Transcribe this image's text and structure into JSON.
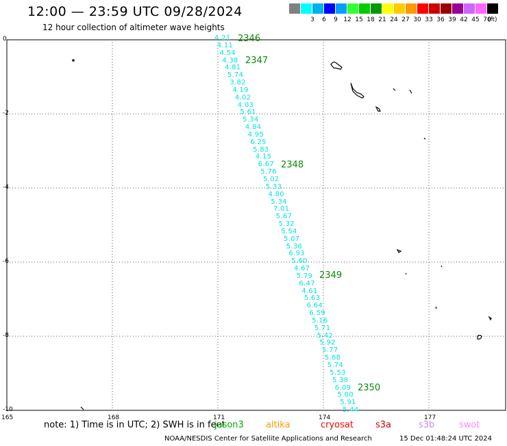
{
  "title": "12:00 — 23:59 UTC 09/28/2024",
  "subtitle": "12 hour collection of altimeter wave heights",
  "legend": {
    "unit": "(ft)",
    "items": [
      {
        "label": "",
        "color": "#808080"
      },
      {
        "label": "3",
        "color": "#00ffff"
      },
      {
        "label": "6",
        "color": "#00b0f0"
      },
      {
        "label": "9",
        "color": "#0000ff"
      },
      {
        "label": "12",
        "color": "#00a0ff"
      },
      {
        "label": "15",
        "color": "#33ff33"
      },
      {
        "label": "18",
        "color": "#00cc00"
      },
      {
        "label": "21",
        "color": "#009900"
      },
      {
        "label": "24",
        "color": "#ffff00"
      },
      {
        "label": "27",
        "color": "#ffcc00"
      },
      {
        "label": "30",
        "color": "#ff9900"
      },
      {
        "label": "33",
        "color": "#ff0000"
      },
      {
        "label": "36",
        "color": "#cc0000"
      },
      {
        "label": "39",
        "color": "#990000"
      },
      {
        "label": "42",
        "color": "#990099"
      },
      {
        "label": "45",
        "color": "#cc66ff"
      },
      {
        "label": "70",
        "color": "#ff66ff"
      },
      {
        "label": "",
        "color": "#000000"
      }
    ]
  },
  "axes": {
    "y_ticks": [
      "0",
      "-2",
      "-4",
      "-6",
      "-8",
      "-10"
    ],
    "x_ticks": [
      "165",
      "168",
      "171",
      "174",
      "177"
    ]
  },
  "passes": [
    "2346",
    "2347",
    "2348",
    "2349",
    "2350"
  ],
  "swh_values": [
    "4.21",
    "4.11",
    "4.54",
    "4.38",
    "4.81",
    "5.74",
    "3.82",
    "4.19",
    "4.02",
    "4.03",
    "5.61",
    "5.34",
    "4.84",
    "4.95",
    "6.25",
    "5.83",
    "4.15",
    "6.67",
    "5.76",
    "5.02",
    "5.33",
    "4.80",
    "5.34",
    "7.01",
    "5.67",
    "5.32",
    "5.54",
    "5.07",
    "5.36",
    "6.93",
    "5.60",
    "4.67",
    "5.79",
    "6.47",
    "4.61",
    "5.63",
    "6.64",
    "6.59",
    "5.16",
    "5.71",
    "5.42",
    "5.92",
    "5.77",
    "5.68",
    "5.74",
    "5.53",
    "5.38",
    "6.09",
    "5.00",
    "5.91",
    "5.44"
  ],
  "note": "note:  1) Time is in UTC; 2) SWH is in feet",
  "satellites": [
    {
      "name": "jason3",
      "color": "#00aa00"
    },
    {
      "name": "altika",
      "color": "#ff9900"
    },
    {
      "name": "cryosat",
      "color": "#ff0000"
    },
    {
      "name": "s3a",
      "color": "#cc0000"
    },
    {
      "name": "s3b",
      "color": "#cc88ff"
    },
    {
      "name": "swot",
      "color": "#ff88ff"
    }
  ],
  "footer": {
    "credit": "NOAA/NESDIS Center for Satellite Applications and Research",
    "timestamp": "15 Dec 01:48:24 UTC 2024"
  }
}
